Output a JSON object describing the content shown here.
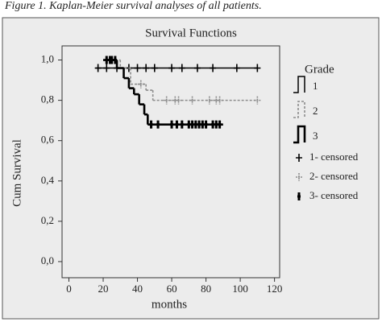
{
  "caption": "Figure 1. Kaplan-Meier survival analyses of all patients.",
  "chart_data": {
    "type": "line",
    "step": true,
    "title": "Survival Functions",
    "x_label": "months",
    "y_label": "Cum Survival",
    "xlim": [
      -4,
      123
    ],
    "xticks": [
      0,
      20,
      40,
      60,
      80,
      100,
      120
    ],
    "ylim": [
      -0.08,
      1.07
    ],
    "yticks": [
      {
        "value": 0,
        "label": "0,0"
      },
      {
        "value": 0.2,
        "label": "0,2"
      },
      {
        "value": 0.4,
        "label": "0,4"
      },
      {
        "value": 0.6,
        "label": "0,6"
      },
      {
        "value": 0.8,
        "label": "0,8"
      },
      {
        "value": 1,
        "label": "1,0"
      }
    ],
    "legend_title": "Grade",
    "legend": "right",
    "series": [
      {
        "name": "1",
        "color": "#000000",
        "line_style": "solid",
        "censored_label": "1- censored",
        "x": [
          16,
          110
        ],
        "values": [
          0.96,
          0.96
        ],
        "censored_x": [
          17,
          22,
          28,
          35,
          40,
          45,
          50,
          60,
          66,
          75,
          84,
          98,
          110
        ],
        "censored_values": [
          0.96,
          0.96,
          0.96,
          0.96,
          0.96,
          0.96,
          0.96,
          0.96,
          0.96,
          0.96,
          0.96,
          0.96,
          0.96
        ]
      },
      {
        "name": "2",
        "color": "#8c8c8c",
        "line_style": "dotted",
        "censored_label": "2- censored",
        "x": [
          20,
          30,
          36,
          45,
          49,
          110
        ],
        "values": [
          1.0,
          0.96,
          0.88,
          0.85,
          0.8,
          0.8
        ],
        "censored_x": [
          25,
          42,
          57,
          62,
          64,
          72,
          82,
          86,
          88,
          110
        ],
        "censored_values": [
          1.0,
          0.88,
          0.8,
          0.8,
          0.8,
          0.8,
          0.8,
          0.8,
          0.8,
          0.8
        ]
      },
      {
        "name": "3",
        "color": "#000000",
        "line_style": "bold",
        "censored_label": "3- censored",
        "x": [
          20,
          28,
          32,
          35,
          38,
          41,
          44,
          46,
          90
        ],
        "values": [
          1.0,
          0.96,
          0.91,
          0.86,
          0.83,
          0.78,
          0.73,
          0.68,
          0.68
        ],
        "censored_x": [
          22,
          24,
          25,
          27,
          48,
          52,
          60,
          63,
          66,
          70,
          72,
          74,
          76,
          78,
          80,
          84,
          86,
          88
        ],
        "censored_values": [
          1.0,
          1.0,
          1.0,
          1.0,
          0.68,
          0.68,
          0.68,
          0.68,
          0.68,
          0.68,
          0.68,
          0.68,
          0.68,
          0.68,
          0.68,
          0.68,
          0.68,
          0.68
        ]
      }
    ]
  }
}
